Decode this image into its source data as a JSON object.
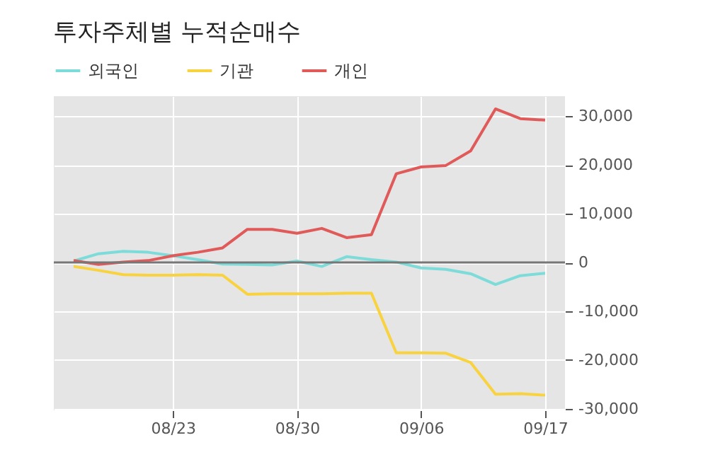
{
  "chart_data": {
    "type": "line",
    "title": "투자주체별 누적순매수",
    "categories": [
      null,
      null,
      null,
      null,
      "08/23",
      null,
      null,
      null,
      null,
      "08/30",
      null,
      null,
      null,
      null,
      "09/06",
      null,
      null,
      null,
      null,
      "09/17"
    ],
    "series": [
      {
        "name": "외국인",
        "color": "#7ddcd9",
        "values": [
          300,
          1800,
          2300,
          2100,
          1400,
          600,
          -300,
          -400,
          -500,
          300,
          -800,
          1200,
          600,
          100,
          -1100,
          -1400,
          -2300,
          -4500,
          -2700,
          -2200
        ]
      },
      {
        "name": "기관",
        "color": "#f9d23f",
        "values": [
          -800,
          -1600,
          -2500,
          -2600,
          -2600,
          -2500,
          -2600,
          -6500,
          -6400,
          -6400,
          -6400,
          -6300,
          -6300,
          -18500,
          -18500,
          -18600,
          -20500,
          -27000,
          -26900,
          -27200
        ]
      },
      {
        "name": "개인",
        "color": "#e05a5a",
        "values": [
          400,
          -400,
          100,
          400,
          1400,
          2100,
          3000,
          6800,
          6800,
          6000,
          7000,
          5100,
          5700,
          18200,
          19600,
          19900,
          22900,
          31500,
          29500,
          29200
        ]
      }
    ],
    "ylim": [
      -30300,
      34100
    ],
    "yticks": [
      {
        "value": -30000,
        "label": "-30,000"
      },
      {
        "value": -20000,
        "label": "-20,000"
      },
      {
        "value": -10000,
        "label": "-10,000"
      },
      0,
      {
        "value": 10000,
        "label": "10,000"
      },
      {
        "value": 20000,
        "label": "20,000"
      },
      {
        "value": 30000,
        "label": "30,000"
      }
    ],
    "ref_lines": [
      {
        "axis": "y",
        "value": 0,
        "color": "#777777"
      }
    ],
    "grid": true,
    "legend": "top left",
    "marker": "none",
    "line_style": "solid"
  }
}
